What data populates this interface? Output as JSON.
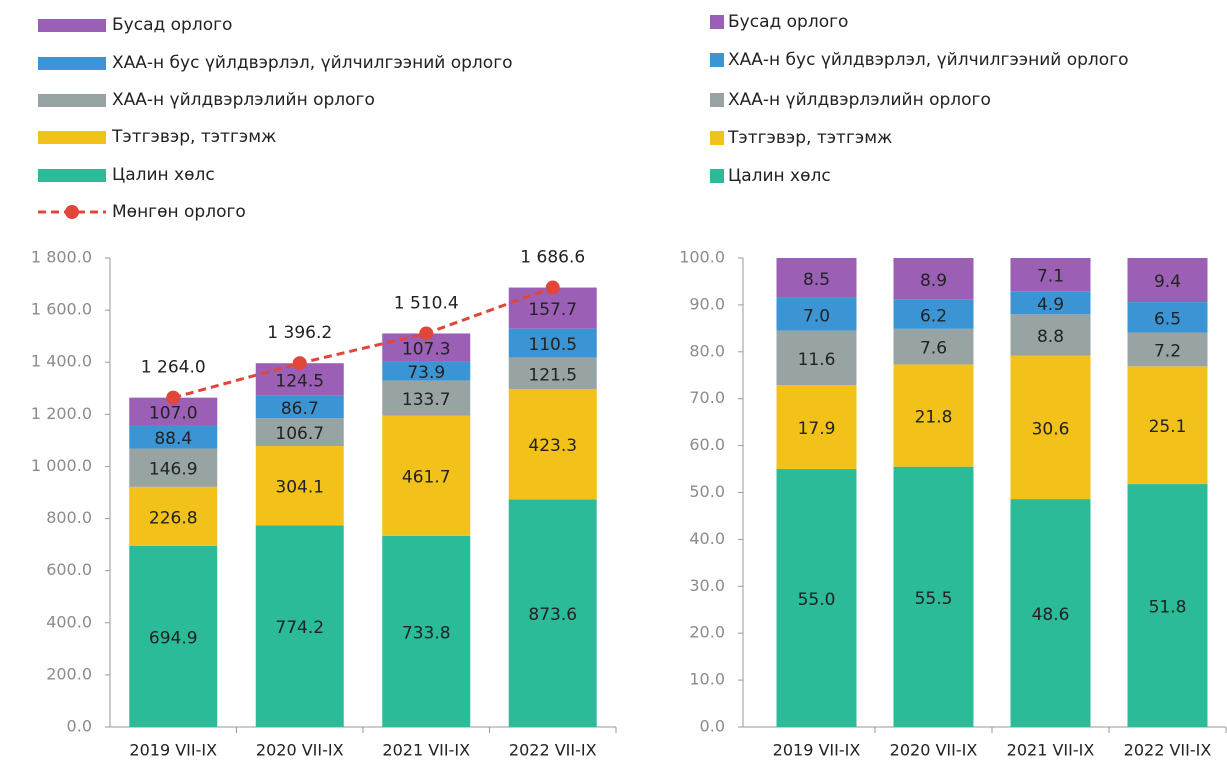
{
  "chart_data": [
    {
      "type": "bar",
      "stacked": true,
      "categories": [
        "2019 VII-IX",
        "2020 VII-IX",
        "2021 VII-IX",
        "2022 VII-IX"
      ],
      "series": [
        {
          "name": "Цалин хөлс",
          "color": "#2bbb98",
          "values": [
            694.9,
            774.2,
            733.8,
            873.6
          ],
          "value_labels": [
            "694.9",
            "774.2",
            "733.8",
            "873.6"
          ]
        },
        {
          "name": "Тэтгэвэр, тэтгэмж",
          "color": "#f2c21b",
          "values": [
            226.8,
            304.1,
            461.7,
            423.3
          ],
          "value_labels": [
            "226.8",
            "304.1",
            "461.7",
            "423.3"
          ]
        },
        {
          "name": "ХАА-н үйлдвэрлэлийн орлого",
          "color": "#98a3a3",
          "values": [
            146.9,
            106.7,
            133.7,
            121.5
          ],
          "value_labels": [
            "146.9",
            "106.7",
            "133.7",
            "121.5"
          ]
        },
        {
          "name": "ХАА-н бус үйлдвэрлэл, үйлчилгээний орлого",
          "color": "#3b95d5",
          "values": [
            88.4,
            86.7,
            73.9,
            110.5
          ],
          "value_labels": [
            "88.4",
            "86.7",
            "73.9",
            "110.5"
          ]
        },
        {
          "name": "Бусад орлого",
          "color": "#9b5fb5",
          "values": [
            107.0,
            124.5,
            107.3,
            157.7
          ],
          "value_labels": [
            "107.0",
            "124.5",
            "107.3",
            "157.7"
          ]
        },
        {
          "name": "Мөнгөн орлого",
          "type": "line",
          "color": "#e0463a",
          "values": [
            1264.0,
            1396.2,
            1510.4,
            1686.6
          ],
          "value_labels": [
            "1 264.0",
            "1 396.2",
            "1 510.4",
            "1 686.6"
          ]
        }
      ],
      "ylim": [
        0,
        1800
      ],
      "yticks": [
        {
          "value": 0,
          "label": "0.0"
        },
        {
          "value": 200,
          "label": "200.0"
        },
        {
          "value": 400,
          "label": "400.0"
        },
        {
          "value": 600,
          "label": "600.0"
        },
        {
          "value": 800,
          "label": "800.0"
        },
        {
          "value": 1000,
          "label": "1 000.0"
        },
        {
          "value": 1200,
          "label": "1 200.0"
        },
        {
          "value": 1400,
          "label": "1 400.0"
        },
        {
          "value": 1600,
          "label": "1 600.0"
        },
        {
          "value": 1800,
          "label": "1 800.0"
        }
      ]
    },
    {
      "type": "bar",
      "stacked": true,
      "categories": [
        "2019 VII-IX",
        "2020 VII-IX",
        "2021 VII-IX",
        "2022 VII-IX"
      ],
      "series": [
        {
          "name": "Цалин хөлс",
          "color": "#2bbb98",
          "values": [
            55.0,
            55.5,
            48.6,
            51.8
          ],
          "value_labels": [
            "55.0",
            "55.5",
            "48.6",
            "51.8"
          ]
        },
        {
          "name": "Тэтгэвэр, тэтгэмж",
          "color": "#f2c21b",
          "values": [
            17.9,
            21.8,
            30.6,
            25.1
          ],
          "value_labels": [
            "17.9",
            "21.8",
            "30.6",
            "25.1"
          ]
        },
        {
          "name": "ХАА-н үйлдвэрлэлийн орлого",
          "color": "#98a3a3",
          "values": [
            11.6,
            7.6,
            8.8,
            7.2
          ],
          "value_labels": [
            "11.6",
            "7.6",
            "8.8",
            "7.2"
          ]
        },
        {
          "name": "ХАА-н бус үйлдвэрлэл, үйлчилгээний орлого",
          "color": "#3b95d5",
          "values": [
            7.0,
            6.2,
            4.9,
            6.5
          ],
          "value_labels": [
            "7.0",
            "6.2",
            "4.9",
            "6.5"
          ]
        },
        {
          "name": "Бусад орлого",
          "color": "#9b5fb5",
          "values": [
            8.5,
            8.9,
            7.1,
            9.4
          ],
          "value_labels": [
            "8.5",
            "8.9",
            "7.1",
            "9.4"
          ]
        }
      ],
      "ylim": [
        0,
        100
      ],
      "yticks": [
        {
          "value": 0,
          "label": "0.0"
        },
        {
          "value": 10,
          "label": "10.0"
        },
        {
          "value": 20,
          "label": "20.0"
        },
        {
          "value": 30,
          "label": "30.0"
        },
        {
          "value": 40,
          "label": "40.0"
        },
        {
          "value": 50,
          "label": "50.0"
        },
        {
          "value": 60,
          "label": "60.0"
        },
        {
          "value": 70,
          "label": "70.0"
        },
        {
          "value": 80,
          "label": "80.0"
        },
        {
          "value": 90,
          "label": "90.0"
        },
        {
          "value": 100,
          "label": "100.0"
        }
      ]
    }
  ]
}
